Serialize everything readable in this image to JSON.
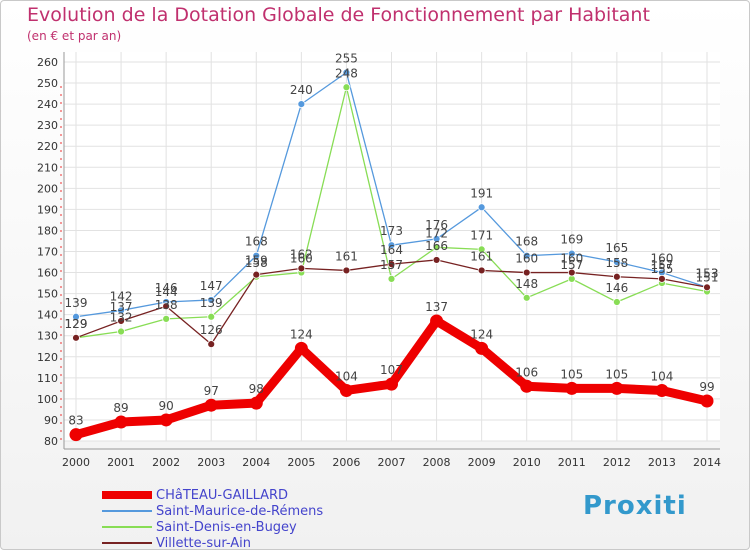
{
  "title": "Evolution de la Dotation Globale de Fonctionnement par Habitant",
  "subtitle": "(en € et par an)",
  "brand": "Proxiti",
  "chart_data": {
    "type": "line",
    "title": "Evolution de la Dotation Globale de Fonctionnement par Habitant",
    "subtitle": "(en € et par an)",
    "xlabel": "",
    "ylabel": "",
    "x": [
      2000,
      2001,
      2002,
      2003,
      2004,
      2005,
      2006,
      2007,
      2008,
      2009,
      2010,
      2011,
      2012,
      2013,
      2014
    ],
    "ylim": [
      80,
      260
    ],
    "yticks": [
      80,
      90,
      100,
      110,
      120,
      130,
      140,
      150,
      160,
      170,
      180,
      190,
      200,
      210,
      220,
      230,
      240,
      250,
      260
    ],
    "grid": true,
    "legend": "bottom-left",
    "series": [
      {
        "name": "CHâTEAU-GAILLARD",
        "color": "#ee0000",
        "values": [
          83,
          89,
          90,
          97,
          98,
          124,
          104,
          107,
          137,
          124,
          106,
          105,
          105,
          104,
          99
        ]
      },
      {
        "name": "Saint-Maurice-de-Rémens",
        "color": "#5599dd",
        "values": [
          139,
          142,
          146,
          147,
          168,
          240,
          255,
          173,
          176,
          191,
          168,
          169,
          165,
          160,
          153
        ]
      },
      {
        "name": "Saint-Denis-en-Bugey",
        "color": "#88dd55",
        "values": [
          129,
          132,
          138,
          139,
          158,
          160,
          248,
          157,
          172,
          171,
          148,
          157,
          146,
          155,
          151
        ]
      },
      {
        "name": "Villette-sur-Ain",
        "color": "#772222",
        "values": [
          129,
          137,
          144,
          126,
          159,
          162,
          161,
          164,
          166,
          161,
          160,
          160,
          158,
          157,
          153
        ]
      }
    ]
  }
}
